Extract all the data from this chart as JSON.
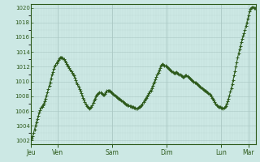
{
  "background_color": "#cce8e4",
  "plot_bg_color": "#cce8e4",
  "line_color": "#2d5a1b",
  "marker_color": "#2d5a1b",
  "grid_color_major": "#aac8c4",
  "grid_color_minor": "#bcd8d4",
  "tick_label_color": "#2d5a1b",
  "axis_color": "#2d5a1b",
  "ylim": [
    1001.5,
    1020.5
  ],
  "yticks": [
    1002,
    1004,
    1006,
    1008,
    1010,
    1012,
    1014,
    1016,
    1018,
    1020
  ],
  "day_labels": [
    "Jeu",
    "Ven",
    "Sam",
    "Dim",
    "Lun",
    "Mar"
  ],
  "day_positions": [
    0,
    32,
    96,
    160,
    224,
    256
  ],
  "total_steps": 265,
  "pressure_values": [
    1002.0,
    1002.3,
    1002.6,
    1003.0,
    1003.5,
    1004.0,
    1004.5,
    1004.9,
    1005.3,
    1005.8,
    1006.1,
    1006.4,
    1006.6,
    1006.8,
    1007.0,
    1007.3,
    1007.7,
    1008.1,
    1008.5,
    1009.0,
    1009.4,
    1009.9,
    1010.4,
    1010.9,
    1011.3,
    1011.7,
    1012.0,
    1012.3,
    1012.5,
    1012.7,
    1012.9,
    1013.1,
    1013.2,
    1013.3,
    1013.2,
    1013.1,
    1013.0,
    1012.8,
    1012.6,
    1012.4,
    1012.2,
    1012.0,
    1011.8,
    1011.6,
    1011.4,
    1011.2,
    1011.0,
    1010.8,
    1010.5,
    1010.2,
    1009.9,
    1009.6,
    1009.3,
    1009.0,
    1008.7,
    1008.4,
    1008.1,
    1007.8,
    1007.5,
    1007.2,
    1006.9,
    1006.7,
    1006.5,
    1006.4,
    1006.3,
    1006.4,
    1006.6,
    1006.8,
    1007.1,
    1007.4,
    1007.7,
    1008.0,
    1008.2,
    1008.3,
    1008.4,
    1008.5,
    1008.5,
    1008.4,
    1008.3,
    1008.2,
    1008.2,
    1008.3,
    1008.5,
    1008.7,
    1008.8,
    1008.8,
    1008.7,
    1008.6,
    1008.5,
    1008.4,
    1008.3,
    1008.2,
    1008.1,
    1008.0,
    1007.9,
    1007.8,
    1007.7,
    1007.6,
    1007.5,
    1007.4,
    1007.3,
    1007.2,
    1007.1,
    1007.0,
    1006.9,
    1006.9,
    1006.8,
    1006.8,
    1006.7,
    1006.7,
    1006.6,
    1006.5,
    1006.5,
    1006.4,
    1006.4,
    1006.3,
    1006.3,
    1006.4,
    1006.5,
    1006.6,
    1006.7,
    1006.8,
    1007.0,
    1007.2,
    1007.4,
    1007.6,
    1007.8,
    1008.0,
    1008.2,
    1008.4,
    1008.6,
    1008.8,
    1009.1,
    1009.4,
    1009.7,
    1010.0,
    1010.3,
    1010.6,
    1010.9,
    1011.2,
    1011.5,
    1011.8,
    1012.1,
    1012.3,
    1012.4,
    1012.3,
    1012.2,
    1012.1,
    1012.0,
    1011.9,
    1011.8,
    1011.7,
    1011.6,
    1011.5,
    1011.4,
    1011.3,
    1011.2,
    1011.2,
    1011.2,
    1011.3,
    1011.2,
    1011.1,
    1011.0,
    1010.9,
    1010.8,
    1010.7,
    1010.6,
    1010.6,
    1010.7,
    1010.8,
    1010.8,
    1010.7,
    1010.6,
    1010.5,
    1010.4,
    1010.3,
    1010.2,
    1010.1,
    1010.0,
    1009.9,
    1009.8,
    1009.7,
    1009.6,
    1009.5,
    1009.4,
    1009.3,
    1009.2,
    1009.1,
    1009.0,
    1008.9,
    1008.8,
    1008.7,
    1008.6,
    1008.5,
    1008.4,
    1008.3,
    1008.2,
    1008.0,
    1007.8,
    1007.6,
    1007.4,
    1007.2,
    1007.0,
    1006.8,
    1006.7,
    1006.6,
    1006.5,
    1006.5,
    1006.4,
    1006.4,
    1006.3,
    1006.4,
    1006.5,
    1006.7,
    1007.0,
    1007.3,
    1007.7,
    1008.1,
    1008.6,
    1009.1,
    1009.6,
    1010.2,
    1010.8,
    1011.4,
    1012.0,
    1012.6,
    1013.2,
    1013.8,
    1014.3,
    1014.8,
    1015.3,
    1015.8,
    1016.2,
    1016.6,
    1017.0,
    1017.5,
    1018.0,
    1018.5,
    1019.0,
    1019.5,
    1019.8,
    1020.0,
    1020.1,
    1020.1,
    1020.0,
    1019.9,
    1020.0
  ]
}
